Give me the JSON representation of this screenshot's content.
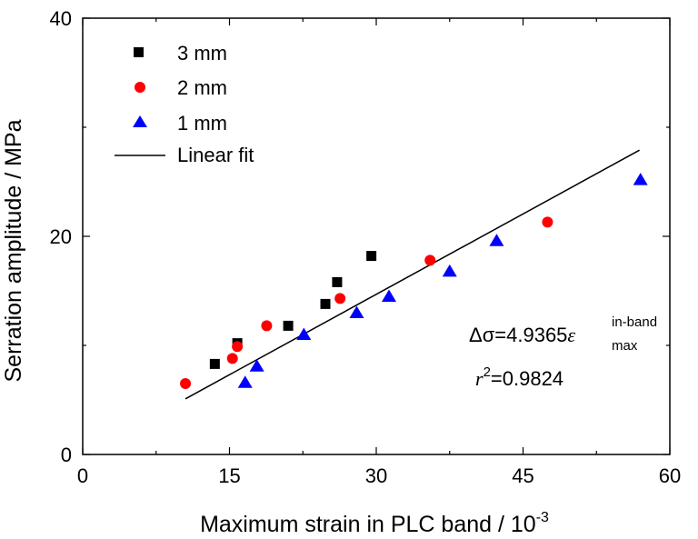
{
  "chart_data": {
    "type": "scatter",
    "xlabel": "Maximum strain in PLC band / 10",
    "xlabel_exponent": "-3",
    "ylabel": "Serration amplitude / MPa",
    "xlim": [
      0,
      60
    ],
    "ylim": [
      0,
      40
    ],
    "x_ticks": [
      0,
      15,
      30,
      45,
      60
    ],
    "y_ticks": [
      0,
      20,
      40
    ],
    "x_tick_labels": [
      "0",
      "15",
      "30",
      "45",
      "60"
    ],
    "y_tick_labels": [
      "0",
      "20",
      "40"
    ],
    "grid": false,
    "legend_position": "top-left",
    "series": [
      {
        "name": "3 mm",
        "marker": "square",
        "color": "#000000",
        "points": [
          [
            13.5,
            8.3
          ],
          [
            15.8,
            10.2
          ],
          [
            21.0,
            11.8
          ],
          [
            24.8,
            13.8
          ],
          [
            26.0,
            15.8
          ],
          [
            29.5,
            18.2
          ]
        ]
      },
      {
        "name": "2 mm",
        "marker": "circle",
        "color": "#ff0000",
        "points": [
          [
            10.5,
            6.5
          ],
          [
            15.3,
            8.8
          ],
          [
            15.8,
            9.9
          ],
          [
            18.8,
            11.8
          ],
          [
            26.3,
            14.3
          ],
          [
            35.5,
            17.8
          ],
          [
            47.5,
            21.3
          ]
        ]
      },
      {
        "name": "1 mm",
        "marker": "triangle",
        "color": "#0000ff",
        "points": [
          [
            16.6,
            6.6
          ],
          [
            17.8,
            8.1
          ],
          [
            22.6,
            11.0
          ],
          [
            28.0,
            13.0
          ],
          [
            31.3,
            14.5
          ],
          [
            37.5,
            16.8
          ],
          [
            42.3,
            19.6
          ],
          [
            57.0,
            25.2
          ]
        ]
      },
      {
        "name": "Linear fit",
        "type": "line",
        "color": "#000000",
        "points": [
          [
            10.5,
            5.1
          ],
          [
            56.9,
            27.9
          ]
        ]
      }
    ],
    "annotations": {
      "equation_prefix": "Δσ=4.9365",
      "epsilon": "ε",
      "superscript": "in-band",
      "subscript": "max",
      "r_symbol": "r",
      "r_exponent": "2",
      "r_value": "=0.9824"
    }
  }
}
